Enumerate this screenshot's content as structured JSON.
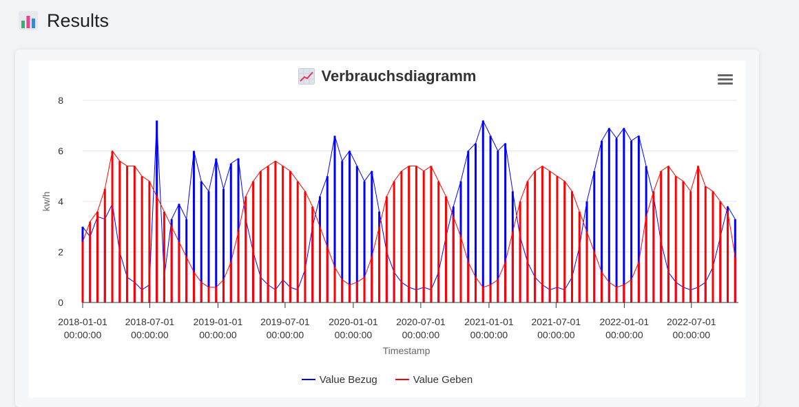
{
  "page": {
    "title": "Results",
    "icon": "bar-chart-emoji-icon"
  },
  "chart_card": {
    "menu_icon": "hamburger-menu-icon",
    "title_icon": "chart-increasing-emoji-icon"
  },
  "chart_data": {
    "type": "line",
    "title": "Verbrauchsdiagramm",
    "xlabel": "Timestamp",
    "ylabel": "kw/h",
    "ylim": [
      0,
      8
    ],
    "yticks": [
      "0",
      "2",
      "4",
      "6",
      "8"
    ],
    "grid": true,
    "legend_position": "bottom",
    "x_range": [
      "2018-01-01",
      "2022-11-01"
    ],
    "xticks": [
      {
        "date": "2018-01-01",
        "line1": "2018-01-01",
        "line2": "00:00:00"
      },
      {
        "date": "2018-07-01",
        "line1": "2018-07-01",
        "line2": "00:00:00"
      },
      {
        "date": "2019-01-01",
        "line1": "2019-01-01",
        "line2": "00:00:00"
      },
      {
        "date": "2019-07-01",
        "line1": "2019-07-01",
        "line2": "00:00:00"
      },
      {
        "date": "2020-01-01",
        "line1": "2020-01-01",
        "line2": "00:00:00"
      },
      {
        "date": "2020-07-01",
        "line1": "2020-07-01",
        "line2": "00:00:00"
      },
      {
        "date": "2021-01-01",
        "line1": "2021-01-01",
        "line2": "00:00:00"
      },
      {
        "date": "2021-07-01",
        "line1": "2021-07-01",
        "line2": "00:00:00"
      },
      {
        "date": "2022-01-01",
        "line1": "2022-01-01",
        "line2": "00:00:00"
      },
      {
        "date": "2022-07-01",
        "line1": "2022-07-01",
        "line2": "00:00:00"
      }
    ],
    "series": [
      {
        "name": "Value Bezug",
        "color": "#0000ff",
        "points": [
          [
            "2018-01-01",
            3.0
          ],
          [
            "2018-01-21",
            2.6
          ],
          [
            "2018-02-10",
            3.4
          ],
          [
            "2018-03-02",
            3.3
          ],
          [
            "2018-03-22",
            3.9
          ],
          [
            "2018-04-11",
            2.0
          ],
          [
            "2018-05-01",
            1.0
          ],
          [
            "2018-05-21",
            0.8
          ],
          [
            "2018-06-10",
            0.5
          ],
          [
            "2018-06-30",
            0.7
          ],
          [
            "2018-07-20",
            7.2
          ],
          [
            "2018-08-09",
            1.0
          ],
          [
            "2018-08-29",
            3.3
          ],
          [
            "2018-09-18",
            3.9
          ],
          [
            "2018-10-08",
            3.3
          ],
          [
            "2018-10-28",
            6.0
          ],
          [
            "2018-11-17",
            4.8
          ],
          [
            "2018-12-07",
            4.4
          ],
          [
            "2018-12-27",
            5.7
          ],
          [
            "2019-01-16",
            4.5
          ],
          [
            "2019-02-05",
            5.5
          ],
          [
            "2019-02-25",
            5.7
          ],
          [
            "2019-03-17",
            3.3
          ],
          [
            "2019-04-06",
            2.0
          ],
          [
            "2019-04-26",
            1.0
          ],
          [
            "2019-05-16",
            0.7
          ],
          [
            "2019-06-05",
            0.5
          ],
          [
            "2019-06-25",
            0.9
          ],
          [
            "2019-07-15",
            0.6
          ],
          [
            "2019-08-04",
            0.5
          ],
          [
            "2019-08-24",
            1.3
          ],
          [
            "2019-09-13",
            3.0
          ],
          [
            "2019-10-03",
            4.2
          ],
          [
            "2019-10-23",
            5.0
          ],
          [
            "2019-11-12",
            6.6
          ],
          [
            "2019-12-02",
            5.6
          ],
          [
            "2019-12-22",
            6.0
          ],
          [
            "2020-01-11",
            5.4
          ],
          [
            "2020-01-31",
            4.8
          ],
          [
            "2020-02-20",
            5.2
          ],
          [
            "2020-03-11",
            3.6
          ],
          [
            "2020-03-31",
            2.0
          ],
          [
            "2020-04-20",
            1.2
          ],
          [
            "2020-05-10",
            0.8
          ],
          [
            "2020-05-30",
            0.6
          ],
          [
            "2020-06-19",
            0.5
          ],
          [
            "2020-07-09",
            0.6
          ],
          [
            "2020-07-29",
            0.5
          ],
          [
            "2020-08-18",
            1.2
          ],
          [
            "2020-09-07",
            2.6
          ],
          [
            "2020-09-27",
            3.8
          ],
          [
            "2020-10-17",
            4.8
          ],
          [
            "2020-11-06",
            6.0
          ],
          [
            "2020-11-26",
            6.3
          ],
          [
            "2020-12-16",
            7.2
          ],
          [
            "2021-01-05",
            6.6
          ],
          [
            "2021-01-25",
            6.0
          ],
          [
            "2021-02-14",
            6.3
          ],
          [
            "2021-03-06",
            4.4
          ],
          [
            "2021-03-26",
            2.6
          ],
          [
            "2021-04-15",
            1.6
          ],
          [
            "2021-05-05",
            1.0
          ],
          [
            "2021-05-25",
            0.7
          ],
          [
            "2021-06-14",
            0.5
          ],
          [
            "2021-07-04",
            0.6
          ],
          [
            "2021-07-24",
            0.5
          ],
          [
            "2021-08-13",
            1.0
          ],
          [
            "2021-09-02",
            2.2
          ],
          [
            "2021-09-22",
            4.0
          ],
          [
            "2021-10-12",
            5.2
          ],
          [
            "2021-11-01",
            6.4
          ],
          [
            "2021-11-21",
            6.9
          ],
          [
            "2021-12-11",
            6.5
          ],
          [
            "2021-12-31",
            6.9
          ],
          [
            "2022-01-20",
            6.4
          ],
          [
            "2022-02-09",
            6.6
          ],
          [
            "2022-03-01",
            5.4
          ],
          [
            "2022-03-21",
            4.2
          ],
          [
            "2022-04-10",
            2.4
          ],
          [
            "2022-04-30",
            1.2
          ],
          [
            "2022-05-20",
            0.8
          ],
          [
            "2022-06-09",
            0.6
          ],
          [
            "2022-06-29",
            0.5
          ],
          [
            "2022-07-19",
            0.6
          ],
          [
            "2022-08-08",
            0.8
          ],
          [
            "2022-08-28",
            1.4
          ],
          [
            "2022-09-17",
            2.6
          ],
          [
            "2022-10-07",
            3.8
          ],
          [
            "2022-10-27",
            3.3
          ]
        ]
      },
      {
        "name": "Value Geben",
        "color": "#ff0000",
        "points": [
          [
            "2018-01-01",
            2.4
          ],
          [
            "2018-01-21",
            3.2
          ],
          [
            "2018-02-10",
            3.6
          ],
          [
            "2018-03-02",
            4.5
          ],
          [
            "2018-03-22",
            6.0
          ],
          [
            "2018-04-11",
            5.6
          ],
          [
            "2018-05-01",
            5.4
          ],
          [
            "2018-05-21",
            5.4
          ],
          [
            "2018-06-10",
            5.0
          ],
          [
            "2018-06-30",
            4.8
          ],
          [
            "2018-07-20",
            4.2
          ],
          [
            "2018-08-09",
            3.6
          ],
          [
            "2018-08-29",
            3.0
          ],
          [
            "2018-09-18",
            2.4
          ],
          [
            "2018-10-08",
            1.8
          ],
          [
            "2018-10-28",
            1.2
          ],
          [
            "2018-11-17",
            0.8
          ],
          [
            "2018-12-07",
            0.6
          ],
          [
            "2018-12-27",
            0.6
          ],
          [
            "2019-01-16",
            0.9
          ],
          [
            "2019-02-05",
            1.6
          ],
          [
            "2019-02-25",
            2.8
          ],
          [
            "2019-03-17",
            4.2
          ],
          [
            "2019-04-06",
            4.8
          ],
          [
            "2019-04-26",
            5.2
          ],
          [
            "2019-05-16",
            5.4
          ],
          [
            "2019-06-05",
            5.6
          ],
          [
            "2019-06-25",
            5.4
          ],
          [
            "2019-07-15",
            5.2
          ],
          [
            "2019-08-04",
            4.8
          ],
          [
            "2019-08-24",
            4.4
          ],
          [
            "2019-09-13",
            3.8
          ],
          [
            "2019-10-03",
            3.0
          ],
          [
            "2019-10-23",
            2.2
          ],
          [
            "2019-11-12",
            1.4
          ],
          [
            "2019-12-02",
            0.9
          ],
          [
            "2019-12-22",
            0.7
          ],
          [
            "2020-01-11",
            0.8
          ],
          [
            "2020-01-31",
            1.0
          ],
          [
            "2020-02-20",
            1.8
          ],
          [
            "2020-03-11",
            3.0
          ],
          [
            "2020-03-31",
            4.2
          ],
          [
            "2020-04-20",
            4.8
          ],
          [
            "2020-05-10",
            5.2
          ],
          [
            "2020-05-30",
            5.4
          ],
          [
            "2020-06-19",
            5.4
          ],
          [
            "2020-07-09",
            5.2
          ],
          [
            "2020-07-29",
            5.4
          ],
          [
            "2020-08-18",
            4.8
          ],
          [
            "2020-09-07",
            4.2
          ],
          [
            "2020-09-27",
            3.4
          ],
          [
            "2020-10-17",
            2.6
          ],
          [
            "2020-11-06",
            1.6
          ],
          [
            "2020-11-26",
            1.0
          ],
          [
            "2020-12-16",
            0.6
          ],
          [
            "2021-01-05",
            0.7
          ],
          [
            "2021-01-25",
            0.9
          ],
          [
            "2021-02-14",
            1.6
          ],
          [
            "2021-03-06",
            2.8
          ],
          [
            "2021-03-26",
            4.0
          ],
          [
            "2021-04-15",
            4.8
          ],
          [
            "2021-05-05",
            5.2
          ],
          [
            "2021-05-25",
            5.4
          ],
          [
            "2021-06-14",
            5.2
          ],
          [
            "2021-07-04",
            5.0
          ],
          [
            "2021-07-24",
            4.8
          ],
          [
            "2021-08-13",
            4.4
          ],
          [
            "2021-09-02",
            3.6
          ],
          [
            "2021-09-22",
            2.8
          ],
          [
            "2021-10-12",
            2.0
          ],
          [
            "2021-11-01",
            1.2
          ],
          [
            "2021-11-21",
            0.8
          ],
          [
            "2021-12-11",
            0.6
          ],
          [
            "2021-12-31",
            0.7
          ],
          [
            "2022-01-20",
            0.9
          ],
          [
            "2022-02-09",
            1.6
          ],
          [
            "2022-03-01",
            3.4
          ],
          [
            "2022-03-21",
            4.4
          ],
          [
            "2022-04-10",
            5.2
          ],
          [
            "2022-04-30",
            5.4
          ],
          [
            "2022-05-20",
            5.0
          ],
          [
            "2022-06-09",
            4.8
          ],
          [
            "2022-06-29",
            4.4
          ],
          [
            "2022-07-19",
            5.4
          ],
          [
            "2022-08-08",
            4.6
          ],
          [
            "2022-08-28",
            4.4
          ],
          [
            "2022-09-17",
            4.0
          ],
          [
            "2022-10-07",
            3.6
          ],
          [
            "2022-10-27",
            1.8
          ]
        ]
      }
    ]
  }
}
